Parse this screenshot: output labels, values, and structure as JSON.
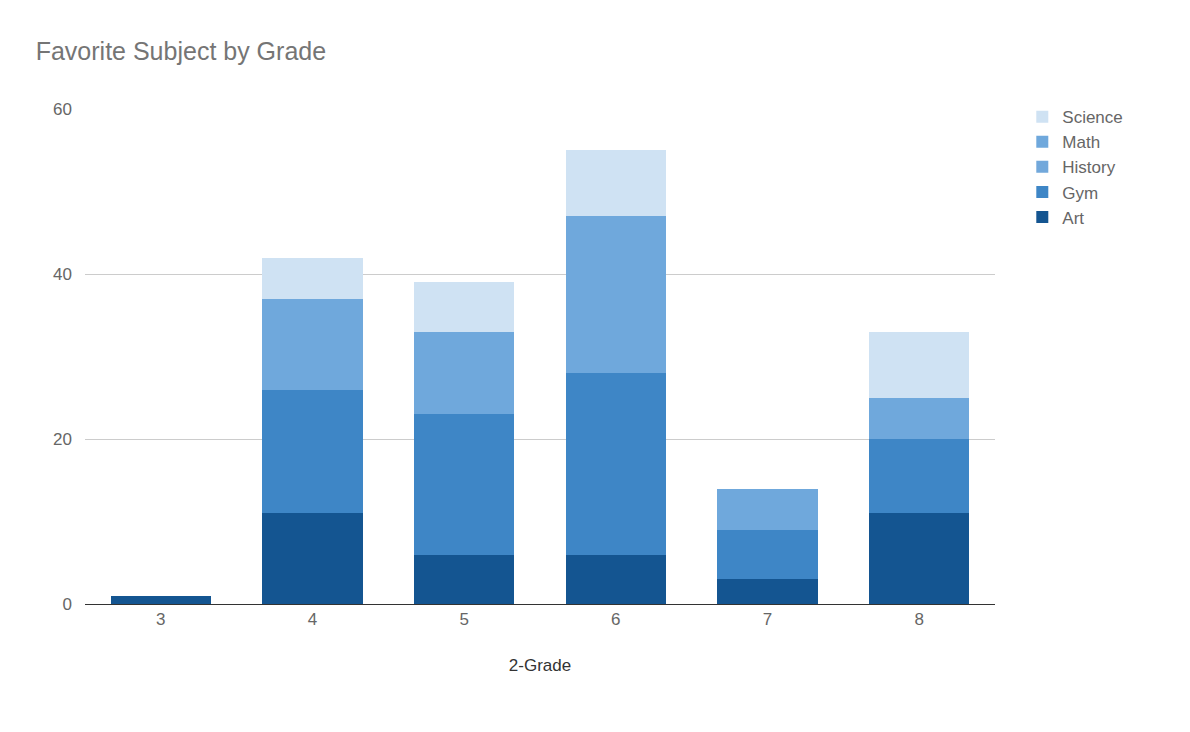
{
  "chart_data": {
    "type": "bar",
    "title": "Favorite Subject by Grade",
    "x_label": "2-Grade",
    "categories": [
      "3",
      "4",
      "5",
      "6",
      "7",
      "8"
    ],
    "series": [
      {
        "name": "Art",
        "color": "#145591",
        "values": [
          1,
          11,
          6,
          6,
          3,
          11
        ]
      },
      {
        "name": "Gym",
        "color": "#3e86c6",
        "values": [
          0,
          15,
          17,
          22,
          6,
          9
        ]
      },
      {
        "name": "History",
        "color": "#72a8db",
        "values": [
          0,
          0,
          0,
          0,
          0,
          0
        ]
      },
      {
        "name": "Math",
        "color": "#6fa8dc",
        "values": [
          0,
          11,
          10,
          19,
          5,
          5
        ]
      },
      {
        "name": "Science",
        "color": "#cfe2f3",
        "values": [
          0,
          5,
          6,
          8,
          0,
          8
        ]
      }
    ],
    "stacked": true,
    "ylim": [
      0,
      60
    ],
    "yticks": [
      0,
      20,
      40,
      60
    ],
    "grid": true,
    "legend": "right"
  }
}
